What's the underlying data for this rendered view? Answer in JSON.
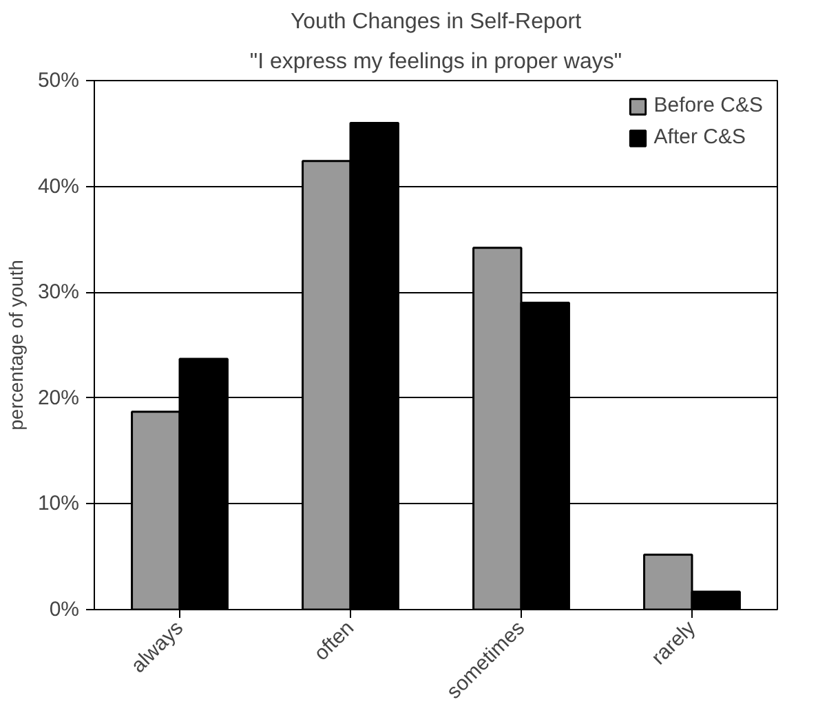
{
  "chart_data": {
    "type": "bar",
    "title": "Youth Changes in Self-Report",
    "subtitle": "\"I express my feelings in proper ways\"",
    "ylabel": "percentage of youth",
    "categories": [
      "always",
      "often",
      "sometimes",
      "rarely"
    ],
    "series": [
      {
        "name": "Before C&S",
        "color": "#999999",
        "values": [
          18.7,
          42.4,
          34.2,
          5.2
        ]
      },
      {
        "name": "After C&S",
        "color": "#000000",
        "values": [
          23.7,
          46.0,
          29.0,
          1.7
        ]
      }
    ],
    "ylim": [
      0,
      50
    ],
    "yticks": [
      {
        "value": 0,
        "label": "0%"
      },
      {
        "value": 10,
        "label": "10%"
      },
      {
        "value": 20,
        "label": "20%"
      },
      {
        "value": 30,
        "label": "30%"
      },
      {
        "value": 40,
        "label": "40%"
      },
      {
        "value": 50,
        "label": "50%"
      }
    ],
    "grid": "y",
    "legend": "top right"
  }
}
